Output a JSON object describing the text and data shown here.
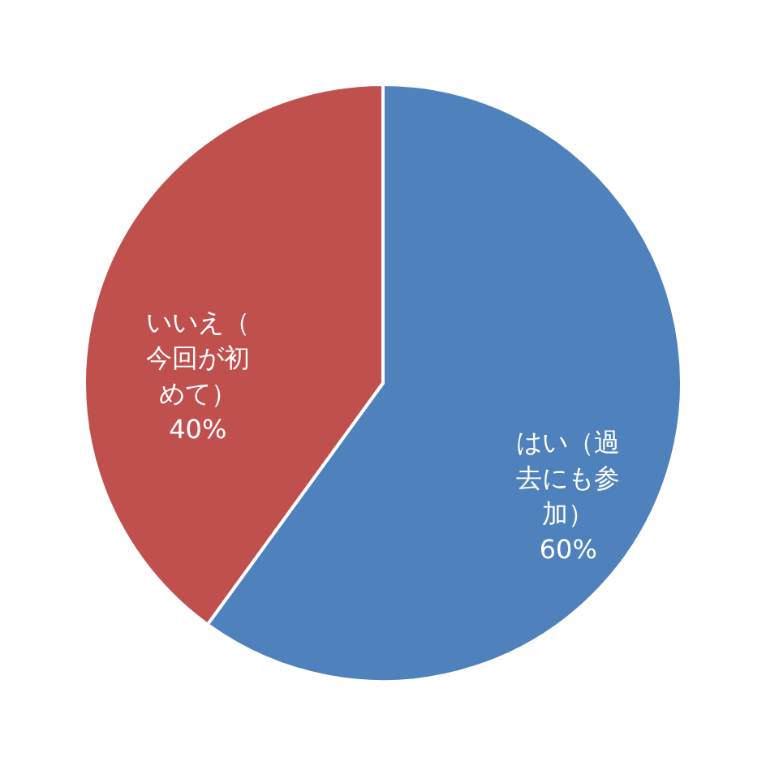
{
  "chart_data": {
    "type": "pie",
    "categories": [
      "はい（過去にも参加）",
      "いいえ（今回が初めて）"
    ],
    "values": [
      60,
      40
    ],
    "colors": [
      "#4f81bd",
      "#c0504d"
    ],
    "value_labels": [
      "60%",
      "40%"
    ]
  }
}
